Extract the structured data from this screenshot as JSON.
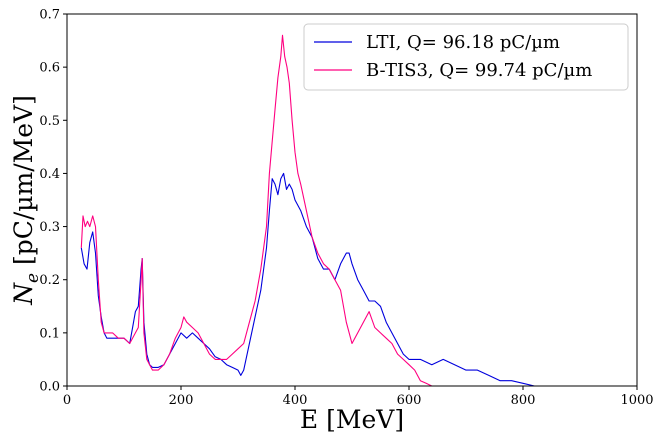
{
  "chart_data": {
    "type": "line",
    "title": "",
    "xlabel": "E [MeV]",
    "ylabel_main": "N",
    "ylabel_sub": "e",
    "ylabel_rest": " [pC/µm/MeV]",
    "xlim": [
      0,
      1000
    ],
    "ylim": [
      0,
      0.7
    ],
    "xticks": [
      0,
      200,
      400,
      600,
      800,
      1000
    ],
    "yticks": [
      0.0,
      0.1,
      0.2,
      0.3,
      0.4,
      0.5,
      0.6,
      0.7
    ],
    "xtick_labels": [
      "0",
      "200",
      "400",
      "600",
      "800",
      "1000"
    ],
    "ytick_labels": [
      "0.0",
      "0.1",
      "0.2",
      "0.3",
      "0.4",
      "0.5",
      "0.6",
      "0.7"
    ],
    "grid": false,
    "legend_position": "top-right",
    "series": [
      {
        "name": "LTI, Q= 96.18 pC/µm",
        "color": "#0000dd",
        "points": [
          [
            25,
            0.26
          ],
          [
            30,
            0.23
          ],
          [
            35,
            0.22
          ],
          [
            40,
            0.27
          ],
          [
            45,
            0.29
          ],
          [
            50,
            0.25
          ],
          [
            55,
            0.17
          ],
          [
            60,
            0.13
          ],
          [
            65,
            0.1
          ],
          [
            70,
            0.09
          ],
          [
            80,
            0.09
          ],
          [
            90,
            0.09
          ],
          [
            100,
            0.09
          ],
          [
            110,
            0.08
          ],
          [
            115,
            0.11
          ],
          [
            120,
            0.14
          ],
          [
            125,
            0.15
          ],
          [
            130,
            0.22
          ],
          [
            132,
            0.24
          ],
          [
            135,
            0.12
          ],
          [
            140,
            0.06
          ],
          [
            145,
            0.04
          ],
          [
            150,
            0.035
          ],
          [
            160,
            0.035
          ],
          [
            170,
            0.04
          ],
          [
            180,
            0.06
          ],
          [
            190,
            0.08
          ],
          [
            200,
            0.1
          ],
          [
            210,
            0.09
          ],
          [
            220,
            0.1
          ],
          [
            230,
            0.09
          ],
          [
            240,
            0.08
          ],
          [
            250,
            0.07
          ],
          [
            260,
            0.055
          ],
          [
            270,
            0.05
          ],
          [
            280,
            0.04
          ],
          [
            290,
            0.035
          ],
          [
            300,
            0.03
          ],
          [
            305,
            0.02
          ],
          [
            310,
            0.03
          ],
          [
            320,
            0.08
          ],
          [
            330,
            0.13
          ],
          [
            340,
            0.18
          ],
          [
            350,
            0.26
          ],
          [
            355,
            0.33
          ],
          [
            360,
            0.39
          ],
          [
            365,
            0.38
          ],
          [
            370,
            0.36
          ],
          [
            375,
            0.39
          ],
          [
            380,
            0.4
          ],
          [
            385,
            0.37
          ],
          [
            390,
            0.38
          ],
          [
            395,
            0.37
          ],
          [
            400,
            0.35
          ],
          [
            410,
            0.33
          ],
          [
            420,
            0.3
          ],
          [
            430,
            0.28
          ],
          [
            440,
            0.24
          ],
          [
            450,
            0.22
          ],
          [
            460,
            0.22
          ],
          [
            470,
            0.2
          ],
          [
            480,
            0.23
          ],
          [
            490,
            0.25
          ],
          [
            495,
            0.25
          ],
          [
            500,
            0.23
          ],
          [
            510,
            0.2
          ],
          [
            520,
            0.18
          ],
          [
            530,
            0.16
          ],
          [
            540,
            0.16
          ],
          [
            550,
            0.15
          ],
          [
            560,
            0.12
          ],
          [
            570,
            0.1
          ],
          [
            580,
            0.08
          ],
          [
            590,
            0.06
          ],
          [
            600,
            0.05
          ],
          [
            620,
            0.05
          ],
          [
            640,
            0.04
          ],
          [
            660,
            0.05
          ],
          [
            680,
            0.04
          ],
          [
            700,
            0.03
          ],
          [
            720,
            0.03
          ],
          [
            740,
            0.02
          ],
          [
            760,
            0.01
          ],
          [
            780,
            0.01
          ],
          [
            800,
            0.005
          ],
          [
            820,
            0.0
          ],
          [
            850,
            0.0
          ],
          [
            878,
            0.0
          ]
        ]
      },
      {
        "name": "B-TIS3, Q= 99.74 pC/µm",
        "color": "#ff0080",
        "points": [
          [
            25,
            0.26
          ],
          [
            28,
            0.32
          ],
          [
            32,
            0.3
          ],
          [
            36,
            0.31
          ],
          [
            40,
            0.3
          ],
          [
            45,
            0.32
          ],
          [
            50,
            0.3
          ],
          [
            55,
            0.2
          ],
          [
            60,
            0.12
          ],
          [
            65,
            0.1
          ],
          [
            70,
            0.1
          ],
          [
            80,
            0.1
          ],
          [
            90,
            0.09
          ],
          [
            100,
            0.09
          ],
          [
            110,
            0.08
          ],
          [
            120,
            0.1
          ],
          [
            125,
            0.11
          ],
          [
            130,
            0.2
          ],
          [
            132,
            0.24
          ],
          [
            135,
            0.1
          ],
          [
            140,
            0.05
          ],
          [
            145,
            0.04
          ],
          [
            150,
            0.03
          ],
          [
            160,
            0.03
          ],
          [
            170,
            0.04
          ],
          [
            180,
            0.06
          ],
          [
            190,
            0.09
          ],
          [
            200,
            0.11
          ],
          [
            205,
            0.13
          ],
          [
            210,
            0.12
          ],
          [
            220,
            0.11
          ],
          [
            230,
            0.1
          ],
          [
            240,
            0.08
          ],
          [
            250,
            0.06
          ],
          [
            260,
            0.05
          ],
          [
            270,
            0.05
          ],
          [
            280,
            0.05
          ],
          [
            290,
            0.06
          ],
          [
            300,
            0.07
          ],
          [
            310,
            0.08
          ],
          [
            320,
            0.12
          ],
          [
            330,
            0.16
          ],
          [
            340,
            0.22
          ],
          [
            350,
            0.3
          ],
          [
            355,
            0.4
          ],
          [
            360,
            0.46
          ],
          [
            365,
            0.52
          ],
          [
            370,
            0.58
          ],
          [
            375,
            0.62
          ],
          [
            378,
            0.66
          ],
          [
            382,
            0.62
          ],
          [
            386,
            0.6
          ],
          [
            390,
            0.57
          ],
          [
            395,
            0.5
          ],
          [
            400,
            0.44
          ],
          [
            405,
            0.4
          ],
          [
            410,
            0.38
          ],
          [
            420,
            0.33
          ],
          [
            430,
            0.28
          ],
          [
            440,
            0.25
          ],
          [
            450,
            0.23
          ],
          [
            460,
            0.22
          ],
          [
            470,
            0.2
          ],
          [
            480,
            0.18
          ],
          [
            490,
            0.12
          ],
          [
            500,
            0.08
          ],
          [
            510,
            0.1
          ],
          [
            520,
            0.12
          ],
          [
            530,
            0.14
          ],
          [
            540,
            0.11
          ],
          [
            550,
            0.1
          ],
          [
            560,
            0.09
          ],
          [
            570,
            0.08
          ],
          [
            580,
            0.06
          ],
          [
            590,
            0.05
          ],
          [
            600,
            0.04
          ],
          [
            610,
            0.03
          ],
          [
            620,
            0.01
          ],
          [
            630,
            0.005
          ],
          [
            640,
            0.0
          ],
          [
            660,
            0.0
          ]
        ]
      }
    ]
  }
}
